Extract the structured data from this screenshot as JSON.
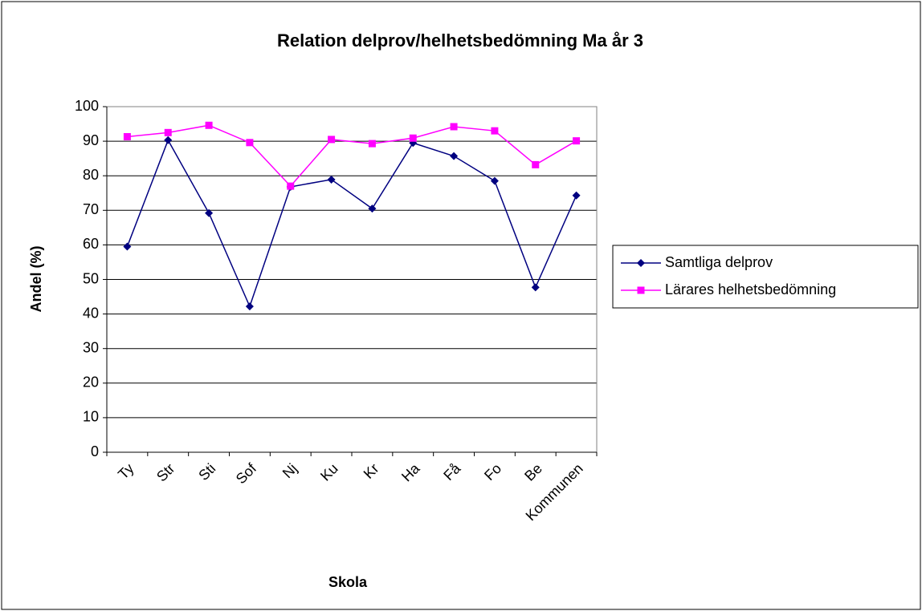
{
  "chart_data": {
    "type": "line",
    "title": "Relation delprov/helhetsbedömning Ma år 3",
    "x_label": "Skola",
    "y_label": "Andel (%)",
    "categories": [
      "Ty",
      "Str",
      "Sti",
      "Sof",
      "Nj",
      "Ku",
      "Kr",
      "Ha",
      "Få",
      "Fo",
      "Be",
      "Kommunen"
    ],
    "series": [
      {
        "name": "Samtliga delprov",
        "color": "#000080",
        "marker": "diamond",
        "values": [
          59.5,
          90.3,
          69.2,
          42.2,
          76.8,
          78.9,
          70.5,
          89.5,
          85.7,
          78.5,
          47.7,
          74.3
        ]
      },
      {
        "name": "Lärares helhetsbedömning",
        "color": "#ff00ff",
        "marker": "square",
        "values": [
          91.3,
          92.5,
          94.6,
          89.6,
          77.0,
          90.5,
          89.3,
          90.9,
          94.2,
          93.0,
          83.2,
          90.1
        ]
      }
    ],
    "ylim": [
      0,
      100
    ],
    "yticks": [
      0,
      10,
      20,
      30,
      40,
      50,
      60,
      70,
      80,
      90,
      100
    ],
    "grid": true,
    "legend": "right"
  }
}
